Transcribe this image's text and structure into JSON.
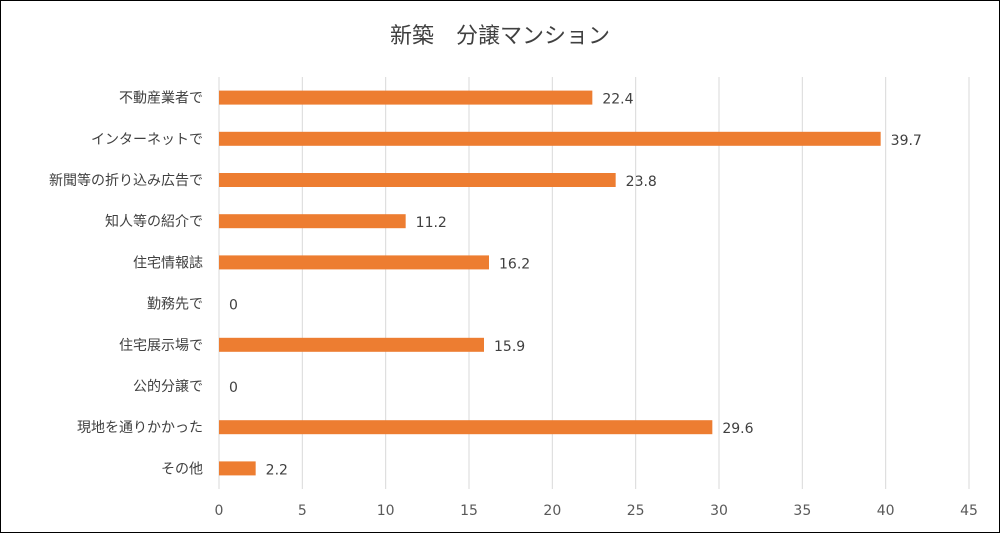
{
  "chart_data": {
    "type": "bar",
    "orientation": "horizontal",
    "title": "新築　分譲マンション",
    "categories": [
      "不動産業者で",
      "インターネットで",
      "新聞等の折り込み広告で",
      "知人等の紹介で",
      "住宅情報誌",
      "勤務先で",
      "住宅展示場で",
      "公的分譲で",
      "現地を通りかかった",
      "その他"
    ],
    "values": [
      22.4,
      39.7,
      23.8,
      11.2,
      16.2,
      0,
      15.9,
      0,
      29.6,
      2.2
    ],
    "data_labels": [
      "22.4",
      "39.7",
      "23.8",
      "11.2",
      "16.2",
      "0",
      "15.9",
      "0",
      "29.6",
      "2.2"
    ],
    "xlim": [
      0,
      45
    ],
    "x_ticks": [
      0,
      5,
      10,
      15,
      20,
      25,
      30,
      35,
      40,
      45
    ],
    "x_tick_labels": [
      "0",
      "5",
      "10",
      "15",
      "20",
      "25",
      "30",
      "35",
      "40",
      "45"
    ],
    "grid": true,
    "legend": false,
    "bar_color": "#ed7d31"
  }
}
